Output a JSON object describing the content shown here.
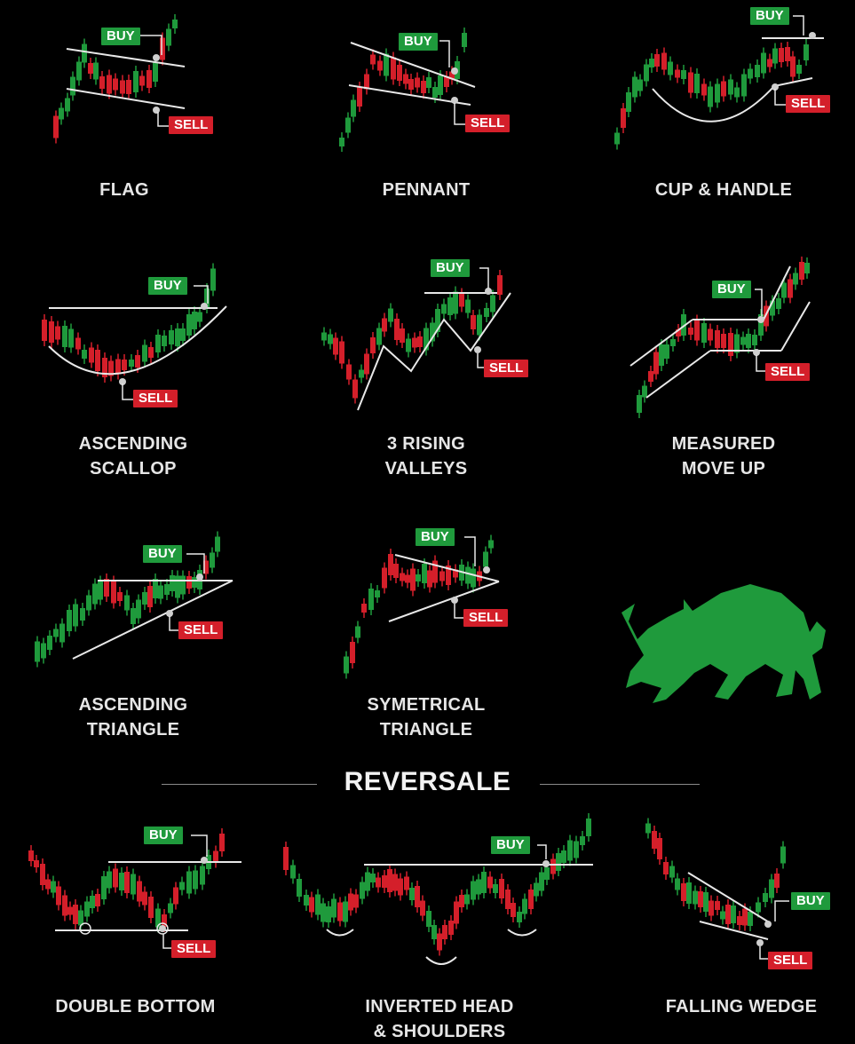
{
  "colors": {
    "background": "#000000",
    "bull": "#1f9a3c",
    "bear": "#d41f2a",
    "line": "#e8e8e8",
    "text": "#e6e6e6"
  },
  "badges": {
    "buy": "BUY",
    "sell": "SELL"
  },
  "section_title": "REVERSALE",
  "illustration": {
    "icon": "bull-icon"
  },
  "patterns": [
    {
      "id": "flag",
      "label": "FLAG"
    },
    {
      "id": "pennant",
      "label": "PENNANT"
    },
    {
      "id": "cup-handle",
      "label": "CUP & HANDLE"
    },
    {
      "id": "ascending-scallop",
      "label": "ASCENDING\nSCALLOP"
    },
    {
      "id": "rising-valleys",
      "label": "3 RISING\nVALLEYS"
    },
    {
      "id": "measured-move-up",
      "label": "MEASURED\nMOVE UP"
    },
    {
      "id": "ascending-triangle",
      "label": "ASCENDING\nTRIANGLE"
    },
    {
      "id": "symmetrical-triangle",
      "label": "SYMETRICAL\nTRIANGLE"
    },
    {
      "id": "double-bottom",
      "label": "DOUBLE BOTTOM"
    },
    {
      "id": "inverted-head-shoulders",
      "label": "INVERTED HEAD\n& SHOULDERS"
    },
    {
      "id": "falling-wedge",
      "label": "FALLING WEDGE"
    }
  ]
}
